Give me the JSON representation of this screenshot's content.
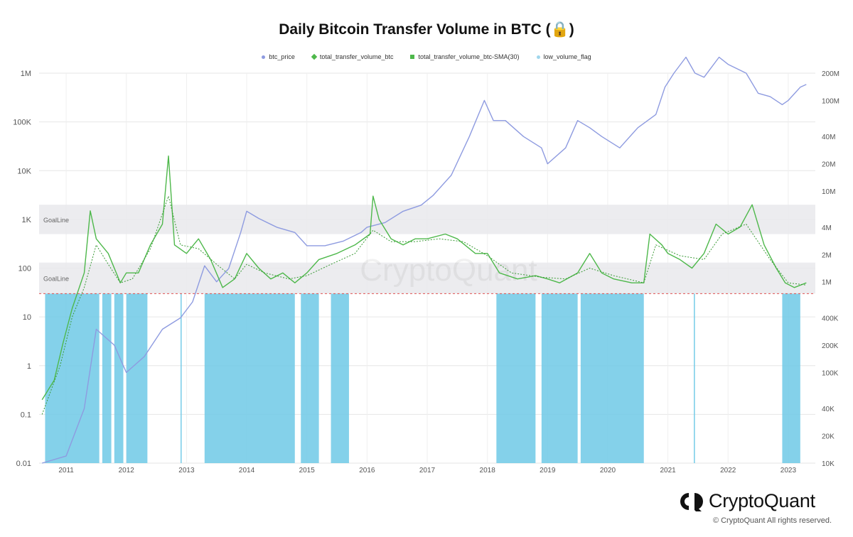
{
  "chart_data": {
    "type": "line",
    "title": "Daily Bitcoin Transfer Volume in BTC (🔒)",
    "x_ticks": [
      "2011",
      "2012",
      "2013",
      "2014",
      "2015",
      "2016",
      "2017",
      "2018",
      "2019",
      "2020",
      "2021",
      "2022",
      "2023"
    ],
    "x_range": [
      2010.55,
      2023.45
    ],
    "y_left": {
      "scale": "log",
      "range": [
        0.01,
        1000000
      ],
      "ticks": [
        "0.01",
        "0.1",
        "1",
        "10",
        "100",
        "1K",
        "10K",
        "100K",
        "1M"
      ]
    },
    "y_right": {
      "scale": "log",
      "range": [
        10000,
        200000000
      ],
      "ticks": [
        "10K",
        "20K",
        "40K",
        "100K",
        "200K",
        "400K",
        "1M",
        "2M",
        "4M",
        "10M",
        "20M",
        "40M",
        "100M",
        "200M"
      ]
    },
    "bands": [
      {
        "label": "GoalLine",
        "y_from": 500,
        "y_to": 2000
      },
      {
        "label": "GoalLine",
        "y_from": 30,
        "y_to": 130
      }
    ],
    "threshold_line": 30,
    "grid": true,
    "legend_position": "top-center",
    "series": [
      {
        "name": "btc_price",
        "axis": "right",
        "color": "#8e9be0",
        "points": [
          [
            2010.6,
            10000
          ],
          [
            2011.0,
            12000
          ],
          [
            2011.3,
            40000
          ],
          [
            2011.5,
            300000
          ],
          [
            2011.8,
            200000
          ],
          [
            2012.0,
            100000
          ],
          [
            2012.3,
            150000
          ],
          [
            2012.6,
            300000
          ],
          [
            2012.9,
            400000
          ],
          [
            2013.1,
            600000
          ],
          [
            2013.3,
            1500000
          ],
          [
            2013.5,
            1000000
          ],
          [
            2013.7,
            1400000
          ],
          [
            2013.9,
            3500000
          ],
          [
            2014.0,
            6000000
          ],
          [
            2014.2,
            5000000
          ],
          [
            2014.5,
            4000000
          ],
          [
            2014.8,
            3500000
          ],
          [
            2015.0,
            2500000
          ],
          [
            2015.3,
            2500000
          ],
          [
            2015.6,
            2800000
          ],
          [
            2015.9,
            3500000
          ],
          [
            2016.0,
            4000000
          ],
          [
            2016.3,
            4500000
          ],
          [
            2016.6,
            6000000
          ],
          [
            2016.9,
            7000000
          ],
          [
            2017.1,
            9000000
          ],
          [
            2017.4,
            15000000
          ],
          [
            2017.7,
            40000000
          ],
          [
            2017.95,
            100000000
          ],
          [
            2018.1,
            60000000
          ],
          [
            2018.3,
            60000000
          ],
          [
            2018.6,
            40000000
          ],
          [
            2018.9,
            30000000
          ],
          [
            2019.0,
            20000000
          ],
          [
            2019.3,
            30000000
          ],
          [
            2019.5,
            60000000
          ],
          [
            2019.7,
            50000000
          ],
          [
            2019.9,
            40000000
          ],
          [
            2020.2,
            30000000
          ],
          [
            2020.5,
            50000000
          ],
          [
            2020.8,
            70000000
          ],
          [
            2020.95,
            140000000
          ],
          [
            2021.1,
            200000000
          ],
          [
            2021.3,
            300000000
          ],
          [
            2021.45,
            200000000
          ],
          [
            2021.6,
            180000000
          ],
          [
            2021.85,
            300000000
          ],
          [
            2022.0,
            250000000
          ],
          [
            2022.3,
            200000000
          ],
          [
            2022.5,
            120000000
          ],
          [
            2022.7,
            110000000
          ],
          [
            2022.9,
            90000000
          ],
          [
            2023.0,
            100000000
          ],
          [
            2023.2,
            140000000
          ],
          [
            2023.3,
            150000000
          ]
        ]
      },
      {
        "name": "total_transfer_volume_btc",
        "axis": "left",
        "color": "#4eb84b",
        "points": [
          [
            2010.6,
            0.2
          ],
          [
            2010.8,
            0.5
          ],
          [
            2010.95,
            3
          ],
          [
            2011.1,
            15
          ],
          [
            2011.3,
            80
          ],
          [
            2011.4,
            1500
          ],
          [
            2011.5,
            400
          ],
          [
            2011.7,
            200
          ],
          [
            2011.9,
            50
          ],
          [
            2012.0,
            80
          ],
          [
            2012.2,
            80
          ],
          [
            2012.4,
            300
          ],
          [
            2012.6,
            800
          ],
          [
            2012.7,
            20000
          ],
          [
            2012.8,
            300
          ],
          [
            2013.0,
            200
          ],
          [
            2013.2,
            400
          ],
          [
            2013.4,
            150
          ],
          [
            2013.6,
            40
          ],
          [
            2013.8,
            60
          ],
          [
            2014.0,
            200
          ],
          [
            2014.2,
            100
          ],
          [
            2014.4,
            60
          ],
          [
            2014.6,
            80
          ],
          [
            2014.8,
            50
          ],
          [
            2015.0,
            80
          ],
          [
            2015.2,
            150
          ],
          [
            2015.5,
            200
          ],
          [
            2015.8,
            300
          ],
          [
            2016.05,
            500
          ],
          [
            2016.1,
            3000
          ],
          [
            2016.2,
            1000
          ],
          [
            2016.4,
            400
          ],
          [
            2016.6,
            300
          ],
          [
            2016.8,
            400
          ],
          [
            2017.0,
            400
          ],
          [
            2017.3,
            500
          ],
          [
            2017.5,
            400
          ],
          [
            2017.8,
            200
          ],
          [
            2018.0,
            200
          ],
          [
            2018.2,
            80
          ],
          [
            2018.5,
            60
          ],
          [
            2018.8,
            70
          ],
          [
            2019.0,
            60
          ],
          [
            2019.2,
            50
          ],
          [
            2019.5,
            80
          ],
          [
            2019.7,
            200
          ],
          [
            2019.9,
            80
          ],
          [
            2020.1,
            60
          ],
          [
            2020.4,
            50
          ],
          [
            2020.6,
            50
          ],
          [
            2020.7,
            500
          ],
          [
            2020.9,
            300
          ],
          [
            2021.0,
            200
          ],
          [
            2021.2,
            150
          ],
          [
            2021.4,
            100
          ],
          [
            2021.6,
            200
          ],
          [
            2021.8,
            800
          ],
          [
            2022.0,
            500
          ],
          [
            2022.2,
            700
          ],
          [
            2022.4,
            2000
          ],
          [
            2022.6,
            300
          ],
          [
            2022.8,
            100
          ],
          [
            2022.95,
            50
          ],
          [
            2023.1,
            40
          ],
          [
            2023.3,
            50
          ]
        ]
      },
      {
        "name": "total_transfer_volume_btc-SMA(30)",
        "axis": "left",
        "color": "#3a9a36",
        "points": [
          [
            2010.6,
            0.1
          ],
          [
            2010.9,
            1
          ],
          [
            2011.1,
            10
          ],
          [
            2011.3,
            40
          ],
          [
            2011.5,
            300
          ],
          [
            2011.7,
            120
          ],
          [
            2011.9,
            50
          ],
          [
            2012.1,
            60
          ],
          [
            2012.4,
            250
          ],
          [
            2012.7,
            3000
          ],
          [
            2012.9,
            300
          ],
          [
            2013.2,
            250
          ],
          [
            2013.5,
            120
          ],
          [
            2013.8,
            60
          ],
          [
            2014.0,
            120
          ],
          [
            2014.3,
            80
          ],
          [
            2014.7,
            60
          ],
          [
            2015.0,
            70
          ],
          [
            2015.4,
            120
          ],
          [
            2015.8,
            200
          ],
          [
            2016.1,
            600
          ],
          [
            2016.4,
            350
          ],
          [
            2016.8,
            350
          ],
          [
            2017.2,
            400
          ],
          [
            2017.6,
            350
          ],
          [
            2018.0,
            180
          ],
          [
            2018.4,
            80
          ],
          [
            2018.9,
            65
          ],
          [
            2019.3,
            60
          ],
          [
            2019.7,
            100
          ],
          [
            2020.1,
            70
          ],
          [
            2020.6,
            50
          ],
          [
            2020.8,
            300
          ],
          [
            2021.2,
            180
          ],
          [
            2021.6,
            150
          ],
          [
            2021.9,
            500
          ],
          [
            2022.3,
            800
          ],
          [
            2022.7,
            150
          ],
          [
            2023.0,
            50
          ],
          [
            2023.3,
            45
          ]
        ]
      }
    ],
    "low_volume_flag": {
      "name": "low_volume_flag",
      "color": "#6ec9e6",
      "periods": [
        [
          2010.65,
          2011.55
        ],
        [
          2011.6,
          2011.75
        ],
        [
          2011.8,
          2011.95
        ],
        [
          2012.0,
          2012.35
        ],
        [
          2012.9,
          2012.92
        ],
        [
          2013.3,
          2014.8
        ],
        [
          2014.9,
          2015.2
        ],
        [
          2015.4,
          2015.7
        ],
        [
          2018.15,
          2018.8
        ],
        [
          2018.9,
          2019.5
        ],
        [
          2019.55,
          2020.6
        ],
        [
          2021.43,
          2021.45
        ],
        [
          2022.9,
          2023.2
        ]
      ]
    }
  },
  "legend": {
    "items": [
      {
        "label": "btc_price",
        "color": "#8e9be0",
        "marker": "dot"
      },
      {
        "label": "total_transfer_volume_btc",
        "color": "#4eb84b",
        "marker": "diamond"
      },
      {
        "label": "total_transfer_volume_btc-SMA(30)",
        "color": "#4eb84b",
        "marker": "square"
      },
      {
        "label": "low_volume_flag",
        "color": "#9fd6ec",
        "marker": "dot"
      }
    ]
  },
  "watermark": "CryptoQuant",
  "brand": {
    "name": "CryptoQuant",
    "copyright": "© CryptoQuant All rights reserved."
  }
}
